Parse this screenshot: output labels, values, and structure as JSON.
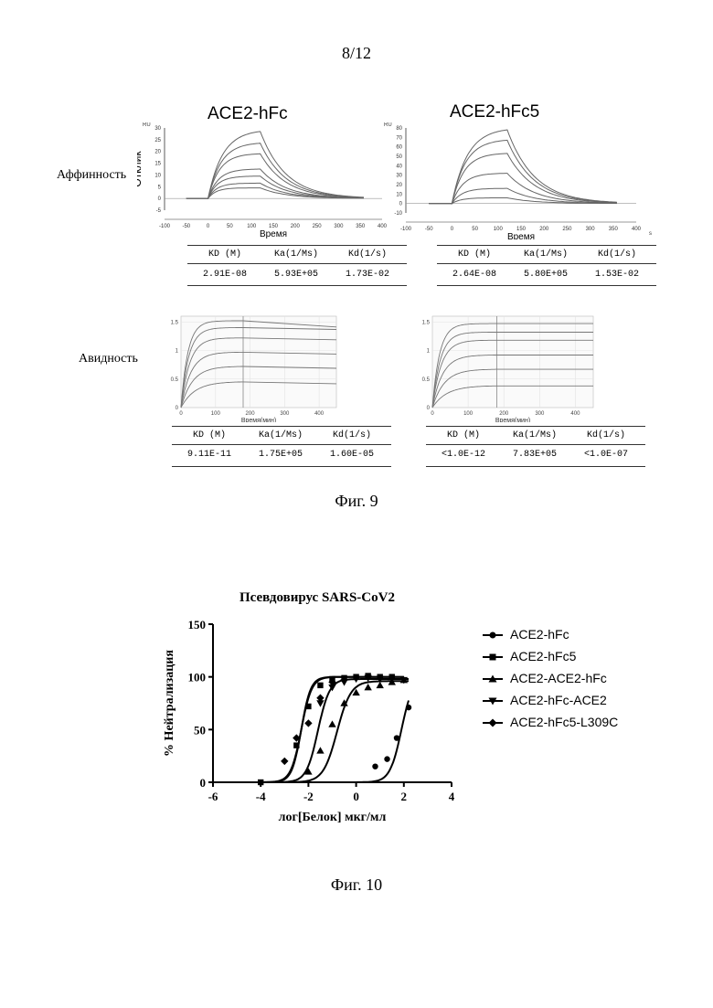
{
  "page": {
    "number": "8/12"
  },
  "fig9": {
    "caption": "Фиг. 9",
    "row_labels": {
      "affinity": "Аффинность",
      "avidity": "Авидность"
    },
    "affinity": {
      "ylabel": "Отклик",
      "xlabel": "Время",
      "y_unit": "RU",
      "x_unit": "s",
      "panels": [
        {
          "title": "ACE2-hFc",
          "yticks": [
            "30",
            "25",
            "20",
            "15",
            "10",
            "5",
            "0",
            "-5"
          ],
          "xticks": [
            "-100",
            "-50",
            "0",
            "50",
            "100",
            "150",
            "200",
            "250",
            "300",
            "350",
            "400"
          ],
          "peak_levels": [
            28.5,
            23.5,
            19,
            12.5,
            9.5,
            6.5,
            4.5
          ]
        },
        {
          "title": "ACE2-hFc5",
          "yticks": [
            "80",
            "70",
            "60",
            "50",
            "40",
            "30",
            "20",
            "10",
            "0",
            "-10"
          ],
          "xticks": [
            "-100",
            "-50",
            "0",
            "50",
            "100",
            "150",
            "200",
            "250",
            "300",
            "350",
            "400"
          ],
          "peak_levels": [
            78,
            67,
            53,
            32,
            16,
            6
          ]
        }
      ],
      "tables": [
        {
          "headers": [
            "KD (M)",
            "Ka(1/Ms)",
            "Kd(1/s)"
          ],
          "values": [
            "2.91E-08",
            "5.93E+05",
            "1.73E-02"
          ]
        },
        {
          "headers": [
            "KD (M)",
            "Ka(1/Ms)",
            "Kd(1/s)"
          ],
          "values": [
            "2.64E-08",
            "5.80E+05",
            "1.53E-02"
          ]
        }
      ]
    },
    "avidity": {
      "xlabel": "Время(мин)",
      "panels": [
        {
          "yticks": [
            "1.5",
            "1",
            "0.5",
            "0"
          ],
          "xticks": [
            "0",
            "100",
            "200",
            "300",
            "400"
          ],
          "plateaus": [
            1.52,
            1.4,
            1.22,
            0.97,
            0.72,
            0.45
          ]
        },
        {
          "yticks": [
            "1.5",
            "1",
            "0.5",
            "0"
          ],
          "xticks": [
            "0",
            "100",
            "200",
            "300",
            "400"
          ],
          "plateaus": [
            1.47,
            1.32,
            1.18,
            0.92,
            0.67,
            0.38
          ]
        }
      ],
      "tables": [
        {
          "headers": [
            "KD (M)",
            "Ka(1/Ms)",
            "Kd(1/s)"
          ],
          "values": [
            "9.11E-11",
            "1.75E+05",
            "1.60E-05"
          ]
        },
        {
          "headers": [
            "KD (M)",
            "Ka(1/Ms)",
            "Kd(1/s)"
          ],
          "values": [
            "<1.0E-12",
            "7.83E+05",
            "<1.0E-07"
          ]
        }
      ]
    }
  },
  "fig10": {
    "caption": "Фиг. 10",
    "chart_data": {
      "type": "scatter",
      "title": "Псевдовирус SARS-CoV2",
      "xlabel": "лог[Белок] мкг/мл",
      "ylabel": "% Нейтрализация",
      "xlim": [
        -6,
        4
      ],
      "ylim": [
        0,
        150
      ],
      "xticks": [
        "-6",
        "-4",
        "-2",
        "0",
        "2",
        "4"
      ],
      "yticks": [
        "0",
        "50",
        "100",
        "150"
      ],
      "legend": "right",
      "series": [
        {
          "name": "ACE2-hFc",
          "marker": "circle",
          "points": [
            [
              0.8,
              15
            ],
            [
              1.3,
              22
            ],
            [
              1.7,
              42
            ],
            [
              2.2,
              71
            ]
          ],
          "fit": {
            "ec50": 1.9,
            "hill": 1.8,
            "top": 100,
            "from": -4.0,
            "to": 2.2
          }
        },
        {
          "name": "ACE2-hFc5",
          "marker": "square",
          "points": [
            [
              -4.0,
              0
            ],
            [
              -2.5,
              35
            ],
            [
              -2.0,
              72
            ],
            [
              -1.5,
              92
            ],
            [
              -1.0,
              98
            ],
            [
              -0.5,
              99
            ],
            [
              0,
              100
            ],
            [
              0.5,
              101
            ],
            [
              1.0,
              100
            ],
            [
              1.5,
              100
            ]
          ],
          "fit": {
            "ec50": -2.3,
            "hill": 2.2,
            "top": 100,
            "from": -4.0,
            "to": 2.0
          }
        },
        {
          "name": "ACE2-ACE2-hFc",
          "marker": "triangle-up",
          "points": [
            [
              -2.0,
              10
            ],
            [
              -1.5,
              30
            ],
            [
              -1.0,
              55
            ],
            [
              -0.5,
              75
            ],
            [
              0,
              85
            ],
            [
              0.5,
              90
            ],
            [
              1.0,
              92
            ],
            [
              1.5,
              95
            ],
            [
              2.0,
              97
            ]
          ],
          "fit": {
            "ec50": -0.8,
            "hill": 1.5,
            "top": 96,
            "from": -4.0,
            "to": 2.2
          }
        },
        {
          "name": "ACE2-hFc-ACE2",
          "marker": "triangle-down",
          "points": [
            [
              -1.5,
              75
            ],
            [
              -1.0,
              90
            ],
            [
              -0.5,
              95
            ],
            [
              0,
              98
            ],
            [
              0.5,
              99
            ],
            [
              1.0,
              98
            ],
            [
              1.5,
              98
            ],
            [
              2.0,
              97
            ]
          ],
          "fit": {
            "ec50": -1.6,
            "hill": 1.8,
            "top": 98,
            "from": -4.0,
            "to": 2.2
          }
        },
        {
          "name": "ACE2-hFc5-L309C",
          "marker": "diamond",
          "points": [
            [
              -3.0,
              20
            ],
            [
              -2.5,
              42
            ],
            [
              -2.0,
              56
            ],
            [
              -1.5,
              80
            ],
            [
              -1.0,
              95
            ]
          ],
          "fit": {
            "ec50": -2.3,
            "hill": 2.0,
            "top": 100,
            "from": -4.0,
            "to": 2.0
          }
        }
      ]
    }
  }
}
